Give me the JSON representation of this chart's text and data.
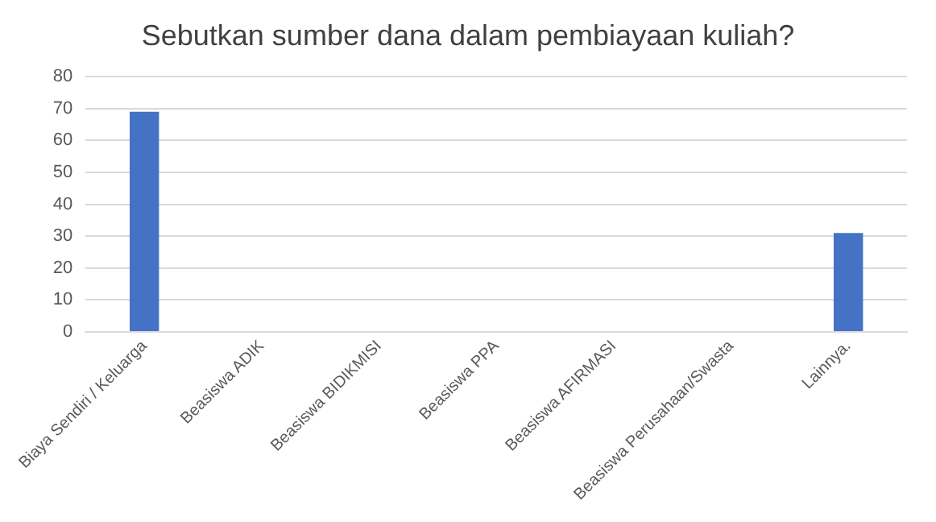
{
  "chart_data": {
    "type": "bar",
    "title": "Sebutkan sumber dana dalam pembiayaan kuliah?",
    "categories": [
      "Biaya Sendiri / Keluarga",
      "Beasiswa ADIK",
      "Beasiswa BIDIKMISI",
      "Beasiswa PPA",
      "Beasiswa AFIRMASI",
      "Beasiswa Perusahaan/Swasta",
      "Lainnya."
    ],
    "values": [
      69,
      0,
      0,
      0,
      0,
      0,
      31
    ],
    "color": "#4472c4",
    "ylim": [
      0,
      80
    ],
    "yticks": [
      0,
      10,
      20,
      30,
      40,
      50,
      60,
      70,
      80
    ],
    "grid": "y",
    "legend": false
  }
}
